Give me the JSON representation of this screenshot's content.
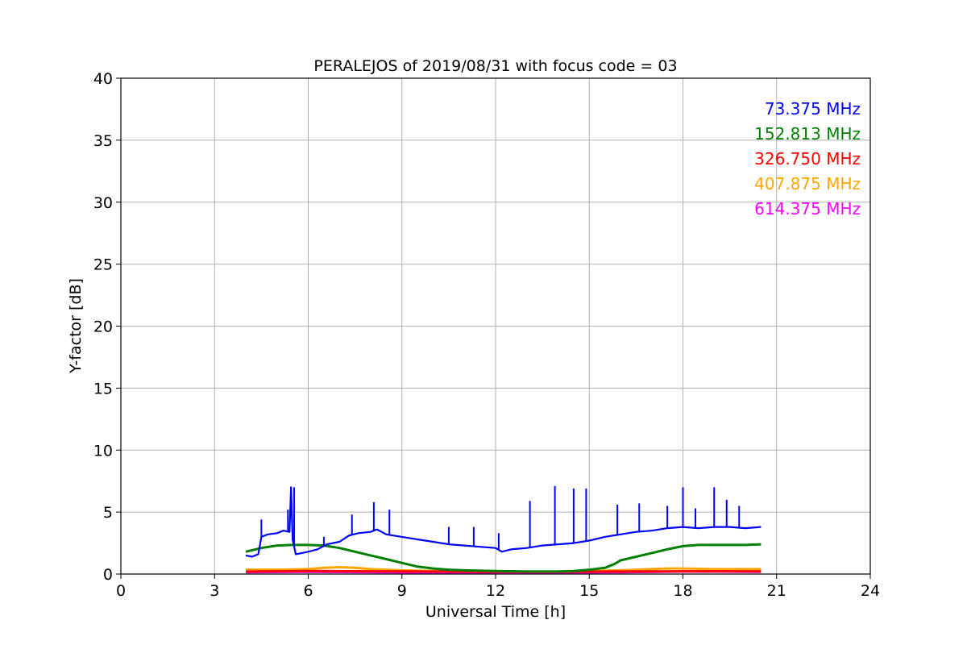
{
  "chart_data": {
    "type": "line",
    "title": "PERALEJOS of 2019/08/31 with focus code = 03",
    "xlabel": "Universal Time [h]",
    "ylabel": "Y-factor [dB]",
    "xlim": [
      0,
      24
    ],
    "ylim": [
      0,
      40
    ],
    "xticks": [
      0,
      3,
      6,
      9,
      12,
      15,
      18,
      21,
      24
    ],
    "yticks": [
      0,
      5,
      10,
      15,
      20,
      25,
      30,
      35,
      40
    ],
    "grid": true,
    "legend_placement": "top-right",
    "series": [
      {
        "name": "73.375 MHz",
        "color": "#0000ff",
        "x": [
          4.0,
          4.2,
          4.4,
          4.5,
          4.7,
          5.0,
          5.2,
          5.4,
          5.45,
          5.5,
          5.6,
          5.8,
          6.0,
          6.3,
          6.6,
          7.0,
          7.3,
          7.6,
          8.0,
          8.2,
          8.5,
          9.0,
          9.5,
          10.0,
          10.5,
          11.0,
          11.5,
          12.0,
          12.2,
          12.5,
          13.0,
          13.5,
          14.0,
          14.5,
          15.0,
          15.5,
          16.0,
          16.5,
          17.0,
          17.5,
          18.0,
          18.5,
          19.0,
          19.5,
          20.0,
          20.5
        ],
        "y": [
          1.5,
          1.4,
          1.6,
          3.0,
          3.2,
          3.3,
          3.5,
          3.4,
          7.0,
          2.8,
          1.6,
          1.7,
          1.8,
          2.0,
          2.4,
          2.6,
          3.1,
          3.3,
          3.4,
          3.6,
          3.2,
          3.0,
          2.8,
          2.6,
          2.4,
          2.3,
          2.2,
          2.1,
          1.8,
          2.0,
          2.1,
          2.3,
          2.4,
          2.5,
          2.7,
          3.0,
          3.2,
          3.4,
          3.5,
          3.7,
          3.8,
          3.7,
          3.8,
          3.8,
          3.7,
          3.8
        ],
        "spikes": [
          [
            4.5,
            4.4
          ],
          [
            5.35,
            5.2
          ],
          [
            5.45,
            7.0
          ],
          [
            5.55,
            7.0
          ],
          [
            6.5,
            3.0
          ],
          [
            7.4,
            4.8
          ],
          [
            8.1,
            5.8
          ],
          [
            8.6,
            5.2
          ],
          [
            10.5,
            3.8
          ],
          [
            11.3,
            3.8
          ],
          [
            12.1,
            3.3
          ],
          [
            13.1,
            5.9
          ],
          [
            13.9,
            7.1
          ],
          [
            14.5,
            6.9
          ],
          [
            14.9,
            6.9
          ],
          [
            15.9,
            5.6
          ],
          [
            16.6,
            5.7
          ],
          [
            17.5,
            5.5
          ],
          [
            18.0,
            7.0
          ],
          [
            18.4,
            5.3
          ],
          [
            19.0,
            7.0
          ],
          [
            19.4,
            6.0
          ],
          [
            19.8,
            5.5
          ]
        ]
      },
      {
        "name": "152.813 MHz",
        "color": "#008000",
        "x": [
          4.0,
          4.5,
          5.0,
          5.5,
          6.0,
          6.5,
          7.0,
          7.5,
          8.0,
          8.5,
          9.0,
          9.5,
          10.0,
          10.5,
          11.0,
          12.0,
          13.0,
          14.0,
          14.5,
          15.0,
          15.5,
          15.8,
          16.0,
          16.5,
          17.0,
          17.5,
          18.0,
          18.5,
          19.0,
          19.5,
          20.0,
          20.5
        ],
        "y": [
          1.8,
          2.1,
          2.3,
          2.35,
          2.35,
          2.3,
          2.1,
          1.8,
          1.5,
          1.2,
          0.9,
          0.6,
          0.45,
          0.35,
          0.3,
          0.25,
          0.2,
          0.2,
          0.25,
          0.35,
          0.5,
          0.8,
          1.1,
          1.4,
          1.7,
          2.0,
          2.25,
          2.35,
          2.35,
          2.35,
          2.35,
          2.4
        ]
      },
      {
        "name": "326.750 MHz",
        "color": "#ff0000",
        "x": [
          4.0,
          6.0,
          8.0,
          10.0,
          12.0,
          14.0,
          16.0,
          18.0,
          20.5
        ],
        "y": [
          0.2,
          0.25,
          0.22,
          0.2,
          0.18,
          0.18,
          0.2,
          0.22,
          0.22
        ]
      },
      {
        "name": "407.875 MHz",
        "color": "#ffa500",
        "x": [
          4.0,
          5.0,
          6.0,
          6.5,
          7.0,
          7.5,
          8.0,
          9.0,
          10.0,
          11.0,
          12.0,
          13.0,
          14.0,
          15.0,
          16.0,
          17.0,
          17.5,
          18.0,
          19.0,
          20.0,
          20.5
        ],
        "y": [
          0.35,
          0.35,
          0.4,
          0.5,
          0.55,
          0.5,
          0.4,
          0.3,
          0.25,
          0.2,
          0.2,
          0.2,
          0.2,
          0.25,
          0.3,
          0.4,
          0.45,
          0.45,
          0.4,
          0.4,
          0.4
        ]
      },
      {
        "name": "614.375 MHz",
        "color": "#ff00ff",
        "x": [
          4.0,
          6.0,
          8.0,
          10.0,
          12.0,
          14.0,
          16.0,
          18.0,
          20.5
        ],
        "y": [
          0.15,
          0.18,
          0.15,
          0.12,
          0.12,
          0.12,
          0.15,
          0.2,
          0.18
        ]
      }
    ]
  }
}
